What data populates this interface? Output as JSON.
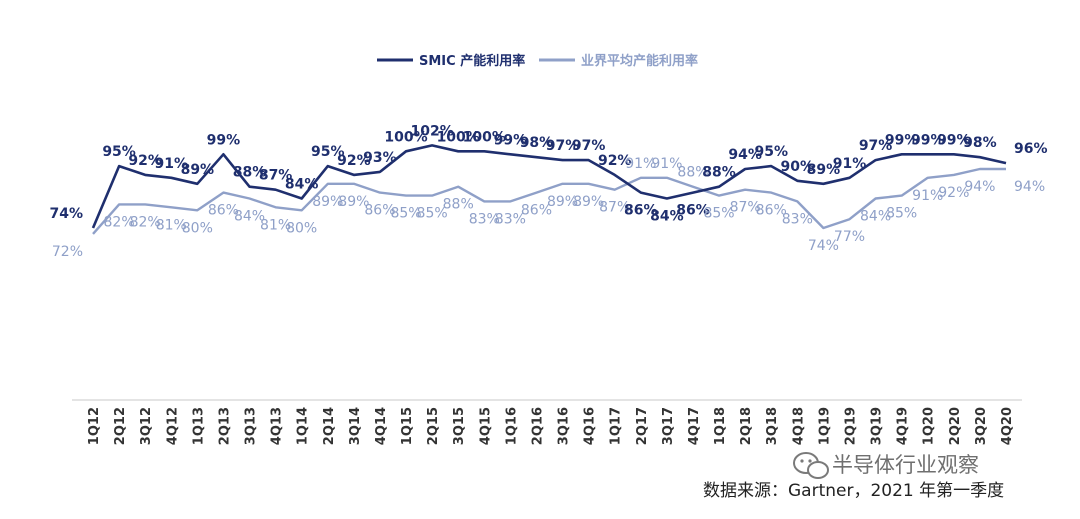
{
  "chart_data": {
    "type": "line",
    "categories": [
      "1Q12",
      "2Q12",
      "3Q12",
      "4Q12",
      "1Q13",
      "2Q13",
      "3Q13",
      "4Q13",
      "1Q14",
      "2Q14",
      "3Q14",
      "4Q14",
      "1Q15",
      "2Q15",
      "3Q15",
      "4Q15",
      "1Q16",
      "2Q16",
      "3Q16",
      "4Q16",
      "1Q17",
      "2Q17",
      "3Q17",
      "4Q17",
      "1Q18",
      "2Q18",
      "3Q18",
      "4Q18",
      "1Q19",
      "2Q19",
      "3Q19",
      "4Q19",
      "1Q20",
      "2Q20",
      "3Q20",
      "4Q20"
    ],
    "series": [
      {
        "name": "SMIC 产能利用率",
        "color": "#1f2f6e",
        "values": [
          74,
          95,
          92,
          91,
          89,
          99,
          88,
          87,
          84,
          95,
          92,
          93,
          100,
          102,
          100,
          100,
          99,
          98,
          97,
          97,
          92,
          86,
          84,
          86,
          88,
          94,
          95,
          90,
          89,
          91,
          97,
          99,
          99,
          99,
          98,
          96
        ]
      },
      {
        "name": "业界平均产能利用率",
        "color": "#8fa0c8",
        "values": [
          72,
          82,
          82,
          81,
          80,
          86,
          84,
          81,
          80,
          89,
          89,
          86,
          85,
          85,
          88,
          83,
          83,
          86,
          89,
          89,
          87,
          91,
          91,
          88,
          85,
          87,
          86,
          83,
          74,
          77,
          84,
          85,
          91,
          92,
          94,
          94
        ]
      }
    ],
    "value_suffix": "%",
    "legend_position": "top-center",
    "grid": false
  },
  "source_text": "数据来源：Gartner，2021 年第一季度",
  "watermark_text": "半导体行业观察"
}
